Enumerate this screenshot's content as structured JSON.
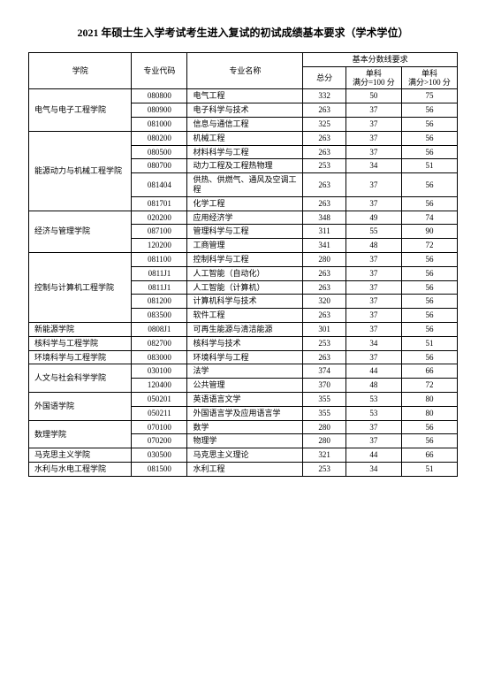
{
  "title": "2021 年硕士生入学考试考生进入复试的初试成绩基本要求（学术学位）",
  "title_fontsize": 12,
  "body_fontsize": 9,
  "colors": {
    "text": "#000000",
    "border": "#000000",
    "bg": "#ffffff"
  },
  "header": {
    "college": "学院",
    "code": "专业代码",
    "major": "专业名称",
    "group": "基本分数线要求",
    "total": "总分",
    "single1a": "单科",
    "single1b": "满分=100 分",
    "single2a": "单科",
    "single2b": "满分>100 分"
  },
  "colleges": [
    {
      "name": "电气与电子工程学院",
      "rows": [
        {
          "code": "080800",
          "major": "电气工程",
          "total": "332",
          "s1": "50",
          "s2": "75"
        },
        {
          "code": "080900",
          "major": "电子科学与技术",
          "total": "263",
          "s1": "37",
          "s2": "56"
        },
        {
          "code": "081000",
          "major": "信息与通信工程",
          "total": "325",
          "s1": "37",
          "s2": "56"
        }
      ]
    },
    {
      "name": "能源动力与机械工程学院",
      "rows": [
        {
          "code": "080200",
          "major": "机械工程",
          "total": "263",
          "s1": "37",
          "s2": "56"
        },
        {
          "code": "080500",
          "major": "材料科学与工程",
          "total": "263",
          "s1": "37",
          "s2": "56"
        },
        {
          "code": "080700",
          "major": "动力工程及工程热物理",
          "total": "253",
          "s1": "34",
          "s2": "51"
        },
        {
          "code": "081404",
          "major": "供热、供燃气、通风及空调工程",
          "total": "263",
          "s1": "37",
          "s2": "56"
        },
        {
          "code": "081701",
          "major": "化学工程",
          "total": "263",
          "s1": "37",
          "s2": "56"
        }
      ]
    },
    {
      "name": "经济与管理学院",
      "rows": [
        {
          "code": "020200",
          "major": "应用经济学",
          "total": "348",
          "s1": "49",
          "s2": "74"
        },
        {
          "code": "087100",
          "major": "管理科学与工程",
          "total": "311",
          "s1": "55",
          "s2": "90"
        },
        {
          "code": "120200",
          "major": "工商管理",
          "total": "341",
          "s1": "48",
          "s2": "72"
        }
      ]
    },
    {
      "name": "控制与计算机工程学院",
      "rows": [
        {
          "code": "081100",
          "major": "控制科学与工程",
          "total": "280",
          "s1": "37",
          "s2": "56"
        },
        {
          "code": "0811J1",
          "major": "人工智能（自动化）",
          "total": "263",
          "s1": "37",
          "s2": "56"
        },
        {
          "code": "0811J1",
          "major": "人工智能（计算机）",
          "total": "263",
          "s1": "37",
          "s2": "56"
        },
        {
          "code": "081200",
          "major": "计算机科学与技术",
          "total": "320",
          "s1": "37",
          "s2": "56"
        },
        {
          "code": "083500",
          "major": "软件工程",
          "total": "263",
          "s1": "37",
          "s2": "56"
        }
      ]
    },
    {
      "name": "新能源学院",
      "rows": [
        {
          "code": "0808J1",
          "major": "可再生能源与清洁能源",
          "total": "301",
          "s1": "37",
          "s2": "56"
        }
      ]
    },
    {
      "name": "核科学与工程学院",
      "rows": [
        {
          "code": "082700",
          "major": "核科学与技术",
          "total": "253",
          "s1": "34",
          "s2": "51"
        }
      ]
    },
    {
      "name": "环境科学与工程学院",
      "rows": [
        {
          "code": "083000",
          "major": "环境科学与工程",
          "total": "263",
          "s1": "37",
          "s2": "56"
        }
      ]
    },
    {
      "name": "人文与社会科学学院",
      "rows": [
        {
          "code": "030100",
          "major": "法学",
          "total": "374",
          "s1": "44",
          "s2": "66"
        },
        {
          "code": "120400",
          "major": "公共管理",
          "total": "370",
          "s1": "48",
          "s2": "72"
        }
      ]
    },
    {
      "name": "外国语学院",
      "rows": [
        {
          "code": "050201",
          "major": "英语语言文学",
          "total": "355",
          "s1": "53",
          "s2": "80"
        },
        {
          "code": "050211",
          "major": "外国语言学及应用语言学",
          "total": "355",
          "s1": "53",
          "s2": "80"
        }
      ]
    },
    {
      "name": "数理学院",
      "rows": [
        {
          "code": "070100",
          "major": "数学",
          "total": "280",
          "s1": "37",
          "s2": "56"
        },
        {
          "code": "070200",
          "major": "物理学",
          "total": "280",
          "s1": "37",
          "s2": "56"
        }
      ]
    },
    {
      "name": "马克思主义学院",
      "rows": [
        {
          "code": "030500",
          "major": "马克思主义理论",
          "total": "321",
          "s1": "44",
          "s2": "66"
        }
      ]
    },
    {
      "name": "水利与水电工程学院",
      "rows": [
        {
          "code": "081500",
          "major": "水利工程",
          "total": "253",
          "s1": "34",
          "s2": "51"
        }
      ]
    }
  ]
}
